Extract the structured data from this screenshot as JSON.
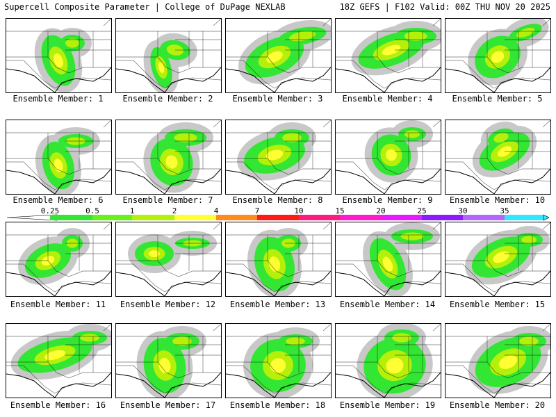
{
  "header": {
    "left_title": "Supercell Composite Parameter | College of DuPage NEXLAB",
    "right_title": "18Z GEFS | F102 Valid: 00Z THU NOV 20 2025"
  },
  "label_prefix": "Ensemble Member: ",
  "members": [
    1,
    2,
    3,
    4,
    5,
    6,
    7,
    8,
    9,
    10,
    11,
    12,
    13,
    14,
    15,
    16,
    17,
    18,
    19,
    20
  ],
  "scale": {
    "labels": [
      "0.25",
      "0.5",
      "1",
      "2",
      "4",
      "7",
      "10",
      "15",
      "20",
      "25",
      "30",
      "35"
    ],
    "colors": [
      "#c8c8c8",
      "#33e633",
      "#66f21a",
      "#b4f00a",
      "#ffff33",
      "#ff8c1a",
      "#ff1a1a",
      "#ff1a80",
      "#ff1acc",
      "#e61aff",
      "#8c1aff",
      "#b266ff",
      "#33e6ff"
    ]
  }
}
